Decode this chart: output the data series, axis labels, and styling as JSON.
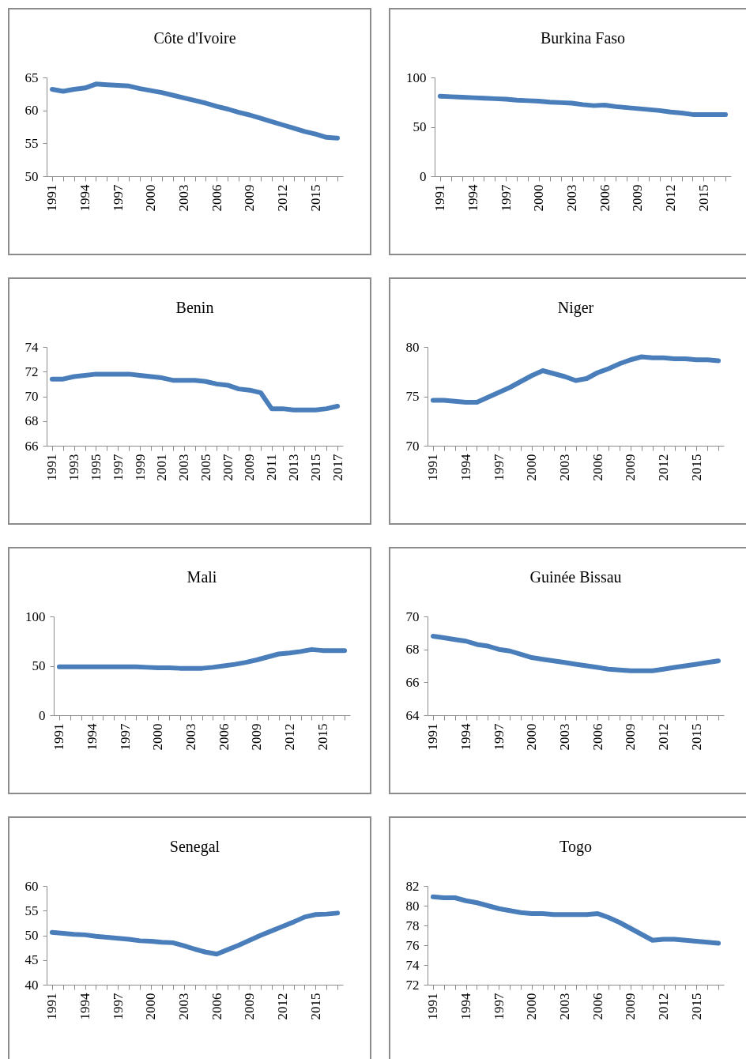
{
  "chart_data": [
    {
      "type": "line",
      "title": "Côte d'Ivoire",
      "categories": [
        "1991",
        null,
        null,
        "1994",
        null,
        null,
        "1997",
        null,
        null,
        "2000",
        null,
        null,
        "2003",
        null,
        null,
        "2006",
        null,
        null,
        "2009",
        null,
        null,
        "2012",
        null,
        null,
        "2015",
        null,
        null
      ],
      "values": [
        63.2,
        62.9,
        63.2,
        63.4,
        64.0,
        63.9,
        63.8,
        63.7,
        63.3,
        63.0,
        62.7,
        62.3,
        61.9,
        61.5,
        61.1,
        60.6,
        60.2,
        59.7,
        59.3,
        58.8,
        58.3,
        57.8,
        57.3,
        56.8,
        56.4,
        55.9,
        55.8
      ],
      "color": "#4a7ebb",
      "ylim": [
        50,
        65
      ],
      "yticks": [
        50,
        55,
        60,
        65
      ]
    },
    {
      "type": "line",
      "title": "Burkina Faso",
      "categories": [
        "1991",
        null,
        null,
        "1994",
        null,
        null,
        "1997",
        null,
        null,
        "2000",
        null,
        null,
        "2003",
        null,
        null,
        "2006",
        null,
        null,
        "2009",
        null,
        null,
        "2012",
        null,
        null,
        "2015",
        null,
        null
      ],
      "values": [
        81,
        80.5,
        80,
        79.5,
        79,
        78.5,
        78,
        77,
        76.5,
        76,
        75,
        74.5,
        74,
        72.5,
        71.5,
        72,
        70.5,
        69.5,
        68.5,
        67.5,
        66.5,
        65,
        64,
        62.5,
        62.5,
        62.5,
        62.5
      ],
      "color": "#4a7ebb",
      "ylim": [
        0,
        100
      ],
      "yticks": [
        0,
        50,
        100
      ]
    },
    {
      "type": "line",
      "title": "Benin",
      "categories": [
        "1991",
        null,
        "1993",
        null,
        "1995",
        null,
        "1997",
        null,
        "1999",
        null,
        "2001",
        null,
        "2003",
        null,
        "2005",
        null,
        "2007",
        null,
        "2009",
        null,
        "2011",
        null,
        "2013",
        null,
        "2015",
        null,
        "2017"
      ],
      "values": [
        71.4,
        71.4,
        71.6,
        71.7,
        71.8,
        71.8,
        71.8,
        71.8,
        71.7,
        71.6,
        71.5,
        71.3,
        71.3,
        71.3,
        71.2,
        71.0,
        70.9,
        70.6,
        70.5,
        70.3,
        69.0,
        69.0,
        68.9,
        68.9,
        68.9,
        69.0,
        69.2
      ],
      "color": "#4a7ebb",
      "ylim": [
        66,
        74
      ],
      "yticks": [
        66,
        68,
        70,
        72,
        74
      ]
    },
    {
      "type": "line",
      "title": "Niger",
      "categories": [
        "1991",
        null,
        null,
        "1994",
        null,
        null,
        "1997",
        null,
        null,
        "2000",
        null,
        null,
        "2003",
        null,
        null,
        "2006",
        null,
        null,
        "2009",
        null,
        null,
        "2012",
        null,
        null,
        "2015",
        null,
        null
      ],
      "values": [
        74.6,
        74.6,
        74.5,
        74.4,
        74.4,
        74.9,
        75.4,
        75.9,
        76.5,
        77.1,
        77.6,
        77.3,
        77.0,
        76.6,
        76.8,
        77.4,
        77.8,
        78.3,
        78.7,
        79.0,
        78.9,
        78.9,
        78.8,
        78.8,
        78.7,
        78.7,
        78.6
      ],
      "color": "#4a7ebb",
      "ylim": [
        70,
        80
      ],
      "yticks": [
        70,
        75,
        80
      ]
    },
    {
      "type": "line",
      "title": "Mali",
      "categories": [
        "1991",
        null,
        null,
        "1994",
        null,
        null,
        "1997",
        null,
        null,
        "2000",
        null,
        null,
        "2003",
        null,
        null,
        "2006",
        null,
        null,
        "2009",
        null,
        null,
        "2012",
        null,
        null,
        "2015",
        null,
        null
      ],
      "values": [
        49,
        49,
        49,
        49,
        49,
        49,
        49,
        49,
        48.5,
        48,
        48,
        47.5,
        47.5,
        47.5,
        48.5,
        50,
        51.5,
        53.5,
        56,
        59,
        62,
        63,
        64.5,
        66.5,
        65.5,
        65.5,
        65.5
      ],
      "color": "#4a7ebb",
      "ylim": [
        0,
        100
      ],
      "yticks": [
        0,
        50,
        100
      ]
    },
    {
      "type": "line",
      "title": "Guinée Bissau",
      "categories": [
        "1991",
        null,
        null,
        "1994",
        null,
        null,
        "1997",
        null,
        null,
        "2000",
        null,
        null,
        "2003",
        null,
        null,
        "2006",
        null,
        null,
        "2009",
        null,
        null,
        "2012",
        null,
        null,
        "2015",
        null,
        null
      ],
      "values": [
        68.8,
        68.7,
        68.6,
        68.5,
        68.3,
        68.2,
        68.0,
        67.9,
        67.7,
        67.5,
        67.4,
        67.3,
        67.2,
        67.1,
        67.0,
        66.9,
        66.8,
        66.75,
        66.7,
        66.7,
        66.7,
        66.8,
        66.9,
        67.0,
        67.1,
        67.2,
        67.3
      ],
      "color": "#4a7ebb",
      "ylim": [
        64,
        70
      ],
      "yticks": [
        64,
        66,
        68,
        70
      ]
    },
    {
      "type": "line",
      "title": "Senegal",
      "categories": [
        "1991",
        null,
        null,
        "1994",
        null,
        null,
        "1997",
        null,
        null,
        "2000",
        null,
        null,
        "2003",
        null,
        null,
        "2006",
        null,
        null,
        "2009",
        null,
        null,
        "2012",
        null,
        null,
        "2015",
        null,
        null
      ],
      "values": [
        50.6,
        50.4,
        50.2,
        50.1,
        49.8,
        49.6,
        49.4,
        49.2,
        48.9,
        48.8,
        48.6,
        48.5,
        47.9,
        47.2,
        46.6,
        46.2,
        47.1,
        48.0,
        49.0,
        50.0,
        50.9,
        51.8,
        52.7,
        53.7,
        54.2,
        54.3,
        54.5
      ],
      "color": "#4a7ebb",
      "ylim": [
        40,
        60
      ],
      "yticks": [
        40,
        45,
        50,
        55,
        60
      ]
    },
    {
      "type": "line",
      "title": "Togo",
      "categories": [
        "1991",
        null,
        null,
        "1994",
        null,
        null,
        "1997",
        null,
        null,
        "2000",
        null,
        null,
        "2003",
        null,
        null,
        "2006",
        null,
        null,
        "2009",
        null,
        null,
        "2012",
        null,
        null,
        "2015",
        null,
        null
      ],
      "values": [
        80.9,
        80.8,
        80.8,
        80.5,
        80.3,
        80.0,
        79.7,
        79.5,
        79.3,
        79.2,
        79.2,
        79.1,
        79.1,
        79.1,
        79.1,
        79.2,
        78.8,
        78.3,
        77.7,
        77.1,
        76.5,
        76.6,
        76.6,
        76.5,
        76.4,
        76.3,
        76.2
      ],
      "color": "#4a7ebb",
      "ylim": [
        72,
        82
      ],
      "yticks": [
        72,
        74,
        76,
        78,
        80,
        82
      ]
    }
  ]
}
